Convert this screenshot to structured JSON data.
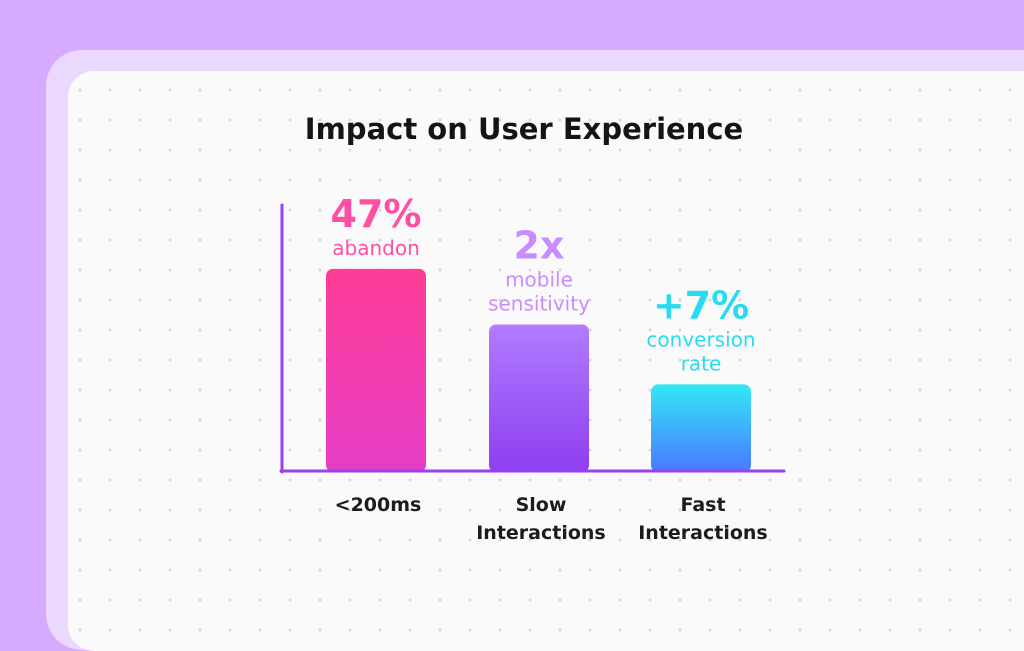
{
  "chart_data": {
    "type": "bar",
    "title": "Impact on User Experience",
    "categories": [
      [
        "<200ms"
      ],
      [
        "Slow",
        "Interactions"
      ],
      [
        "Fast",
        "Interactions"
      ]
    ],
    "values": [
      47,
      34,
      20
    ],
    "value_labels": [
      "47%",
      "2x",
      "+7%"
    ],
    "captions": [
      [
        "abandon"
      ],
      [
        "mobile",
        "sensitivity"
      ],
      [
        "conversion",
        "rate"
      ]
    ],
    "colors": [
      {
        "label": "#ff4fa3",
        "top": "#ff3d96",
        "bottom": "#e53dc8"
      },
      {
        "label": "#c98cff",
        "top": "#b07cff",
        "bottom": "#8e3ef0"
      },
      {
        "label": "#29dbf0",
        "top": "#33e8f5",
        "bottom": "#4a78ff"
      }
    ],
    "axis_color": "#9b3ff0",
    "grid": false,
    "legend": "none"
  }
}
